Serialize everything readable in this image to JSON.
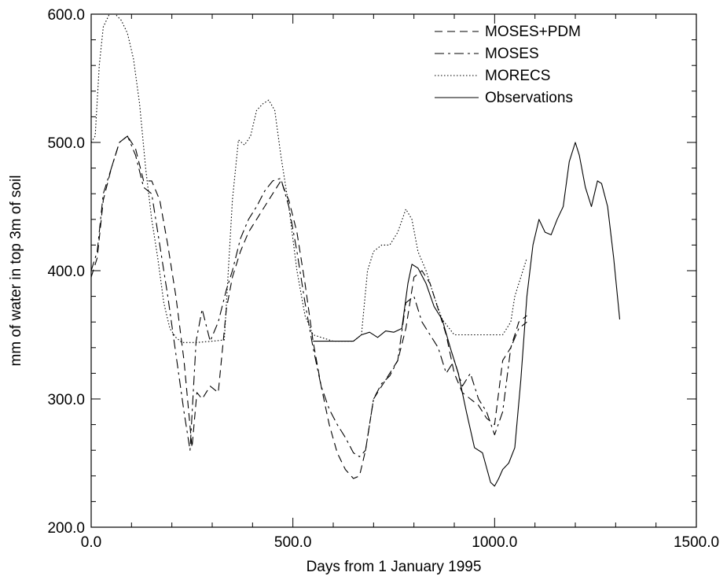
{
  "chart_data": {
    "type": "line",
    "title": "",
    "xlabel": "Days from 1 January 1995",
    "ylabel": "mm of water in top 3m of soil",
    "xlim": [
      0,
      1500
    ],
    "ylim": [
      200,
      600
    ],
    "x_ticks": [
      0,
      500,
      1000,
      1500
    ],
    "x_tick_labels": [
      "0.0",
      "500.0",
      "1000.0",
      "1500.0"
    ],
    "y_ticks": [
      200,
      300,
      400,
      500,
      600
    ],
    "y_tick_labels": [
      "200.0",
      "300.0",
      "400.0",
      "500.0",
      "600.0"
    ],
    "grid": false,
    "legend_position": "top-right",
    "series": [
      {
        "name": "MOSES+PDM",
        "style": "dashed",
        "x": [
          0,
          15,
          30,
          50,
          70,
          90,
          110,
          130,
          150,
          170,
          190,
          210,
          230,
          250,
          262,
          275,
          295,
          315,
          335,
          350,
          370,
          390,
          410,
          430,
          450,
          470,
          490,
          510,
          530,
          550,
          570,
          590,
          610,
          630,
          650,
          665,
          680,
          700,
          720,
          740,
          760,
          780,
          800,
          820,
          840,
          860,
          880,
          900,
          920,
          940,
          960,
          980,
          1000,
          1020,
          1040,
          1060,
          1080
        ],
        "values": [
          395,
          410,
          455,
          480,
          500,
          505,
          495,
          470,
          470,
          455,
          420,
          380,
          330,
          262,
          305,
          300,
          310,
          305,
          370,
          395,
          415,
          430,
          440,
          450,
          460,
          470,
          455,
          430,
          390,
          345,
          310,
          280,
          258,
          245,
          238,
          240,
          260,
          300,
          310,
          320,
          330,
          355,
          395,
          400,
          390,
          370,
          350,
          320,
          305,
          300,
          295,
          285,
          280,
          330,
          340,
          360,
          365
        ]
      },
      {
        "name": "MOSES",
        "style": "dashdot",
        "x": [
          0,
          15,
          30,
          50,
          70,
          90,
          110,
          130,
          150,
          170,
          190,
          210,
          230,
          245,
          260,
          275,
          295,
          315,
          335,
          350,
          370,
          390,
          410,
          430,
          450,
          470,
          490,
          510,
          530,
          550,
          570,
          590,
          610,
          630,
          650,
          665,
          680,
          700,
          720,
          740,
          760,
          780,
          800,
          820,
          840,
          860,
          880,
          900,
          920,
          940,
          960,
          980,
          1000,
          1020,
          1040,
          1060,
          1080
        ],
        "values": [
          400,
          415,
          460,
          480,
          500,
          505,
          490,
          465,
          460,
          420,
          380,
          335,
          290,
          260,
          345,
          370,
          345,
          360,
          385,
          400,
          425,
          440,
          450,
          462,
          470,
          472,
          450,
          415,
          375,
          340,
          310,
          292,
          280,
          270,
          258,
          255,
          260,
          300,
          312,
          318,
          330,
          375,
          380,
          360,
          350,
          340,
          320,
          330,
          310,
          320,
          300,
          290,
          272,
          290,
          340,
          355,
          360
        ]
      },
      {
        "name": "MORECS",
        "style": "dotted",
        "x": [
          0,
          10,
          20,
          30,
          45,
          60,
          75,
          90,
          105,
          120,
          135,
          150,
          165,
          180,
          195,
          210,
          225,
          260,
          300,
          330,
          350,
          365,
          380,
          395,
          410,
          425,
          440,
          455,
          470,
          490,
          510,
          530,
          550,
          600,
          650,
          670,
          685,
          700,
          720,
          740,
          760,
          780,
          795,
          810,
          830,
          850,
          870,
          900,
          950,
          1000,
          1020,
          1040,
          1050,
          1060,
          1070,
          1080
        ],
        "values": [
          500,
          505,
          560,
          590,
          600,
          600,
          595,
          585,
          565,
          530,
          480,
          440,
          410,
          375,
          355,
          348,
          344,
          344,
          345,
          346,
          455,
          502,
          498,
          505,
          525,
          530,
          533,
          525,
          490,
          450,
          400,
          365,
          350,
          345,
          345,
          350,
          400,
          415,
          420,
          420,
          430,
          448,
          440,
          415,
          400,
          380,
          362,
          350,
          350,
          350,
          350,
          360,
          380,
          390,
          400,
          410
        ]
      },
      {
        "name": "Observations",
        "style": "solid",
        "x": [
          550,
          600,
          650,
          670,
          690,
          710,
          730,
          750,
          770,
          785,
          795,
          810,
          830,
          850,
          870,
          890,
          910,
          930,
          950,
          970,
          990,
          1000,
          1010,
          1020,
          1035,
          1050,
          1065,
          1080,
          1095,
          1110,
          1125,
          1140,
          1155,
          1170,
          1185,
          1200,
          1210,
          1225,
          1240,
          1255,
          1265,
          1280,
          1295,
          1310
        ],
        "values": [
          345,
          345,
          345,
          350,
          352,
          348,
          353,
          352,
          355,
          390,
          405,
          402,
          390,
          372,
          362,
          340,
          320,
          290,
          262,
          258,
          235,
          232,
          238,
          245,
          250,
          262,
          315,
          380,
          420,
          440,
          430,
          428,
          440,
          450,
          485,
          500,
          490,
          465,
          450,
          470,
          468,
          450,
          410,
          362
        ]
      }
    ]
  }
}
